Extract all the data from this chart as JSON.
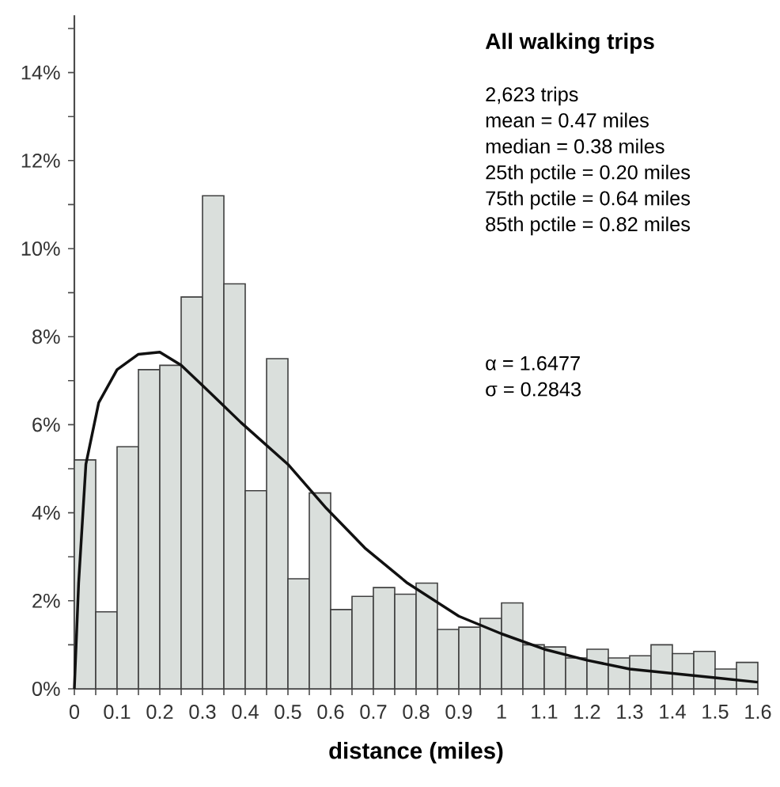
{
  "chart_data": {
    "type": "histogram",
    "title": "All walking trips",
    "xlabel": "distance (miles)",
    "annotations": [
      "2,623 trips",
      "mean = 0.47 miles",
      "median = 0.38 miles",
      "25th pctile = 0.20 miles",
      "75th pctile = 0.64 miles",
      "85th pctile = 0.82 miles",
      "α = 1.6477",
      "σ = 0.2843"
    ],
    "bins": [
      0,
      0.05,
      0.1,
      0.15,
      0.2,
      0.25,
      0.3,
      0.35,
      0.4,
      0.45,
      0.5,
      0.55,
      0.6,
      0.65,
      0.7,
      0.75,
      0.8,
      0.85,
      0.9,
      0.95,
      1.0,
      1.05,
      1.1,
      1.15,
      1.2,
      1.25,
      1.3,
      1.35,
      1.4,
      1.45,
      1.5,
      1.55,
      1.6
    ],
    "series": [
      {
        "color": "#dadfdc",
        "values": [
          5.2,
          1.75,
          5.5,
          7.25,
          7.35,
          8.9,
          11.2,
          9.2,
          4.5,
          7.5,
          2.5,
          4.45,
          1.8,
          2.1,
          2.3,
          2.15,
          2.4,
          1.35,
          1.4,
          1.6,
          1.95,
          1.0,
          0.95,
          0.7,
          0.9,
          0.7,
          0.75,
          1.0,
          0.8,
          0.85,
          0.45,
          0.6
        ]
      },
      {
        "type": "line",
        "color": "#111111",
        "x": [
          0,
          0.01,
          0.027,
          0.057,
          0.1,
          0.15,
          0.2,
          0.25,
          0.31,
          0.39,
          0.5,
          0.59,
          0.68,
          0.78,
          0.9,
          1.0,
          1.1,
          1.2,
          1.3,
          1.4,
          1.5,
          1.6
        ],
        "values": [
          0,
          2.4,
          5.1,
          6.5,
          7.25,
          7.6,
          7.65,
          7.35,
          6.8,
          6.05,
          5.1,
          4.1,
          3.2,
          2.4,
          1.65,
          1.25,
          0.9,
          0.65,
          0.45,
          0.35,
          0.25,
          0.15
        ]
      }
    ],
    "xlim": [
      0,
      1.6
    ],
    "ylim": [
      0,
      15.3
    ],
    "xticks": [
      0,
      {
        "value": 0.05,
        "label": null
      },
      0.1,
      {
        "value": 0.15,
        "label": null
      },
      0.2,
      {
        "value": 0.25,
        "label": null
      },
      0.3,
      {
        "value": 0.35,
        "label": null
      },
      0.4,
      {
        "value": 0.45,
        "label": null
      },
      0.5,
      {
        "value": 0.55,
        "label": null
      },
      0.6,
      {
        "value": 0.65,
        "label": null
      },
      0.7,
      {
        "value": 0.75,
        "label": null
      },
      0.8,
      {
        "value": 0.85,
        "label": null
      },
      0.9,
      {
        "value": 0.95,
        "label": null
      },
      1,
      {
        "value": 1.05,
        "label": null
      },
      1.1,
      {
        "value": 1.15,
        "label": null
      },
      1.2,
      {
        "value": 1.25,
        "label": null
      },
      1.3,
      {
        "value": 1.35,
        "label": null
      },
      1.4,
      {
        "value": 1.45,
        "label": null
      },
      1.5,
      {
        "value": 1.55,
        "label": null
      },
      1.6
    ],
    "yticks": [
      {
        "value": 0,
        "label": "0%"
      },
      {
        "value": 1,
        "label": null
      },
      {
        "value": 2,
        "label": "2%"
      },
      {
        "value": 3,
        "label": null
      },
      {
        "value": 4,
        "label": "4%"
      },
      {
        "value": 5,
        "label": null
      },
      {
        "value": 6,
        "label": "6%"
      },
      {
        "value": 7,
        "label": null
      },
      {
        "value": 8,
        "label": "8%"
      },
      {
        "value": 9,
        "label": null
      },
      {
        "value": 10,
        "label": "10%"
      },
      {
        "value": 11,
        "label": null
      },
      {
        "value": 12,
        "label": "12%"
      },
      {
        "value": 13,
        "label": null
      },
      {
        "value": 14,
        "label": "14%"
      },
      {
        "value": 15,
        "label": null
      }
    ],
    "grid": false
  }
}
